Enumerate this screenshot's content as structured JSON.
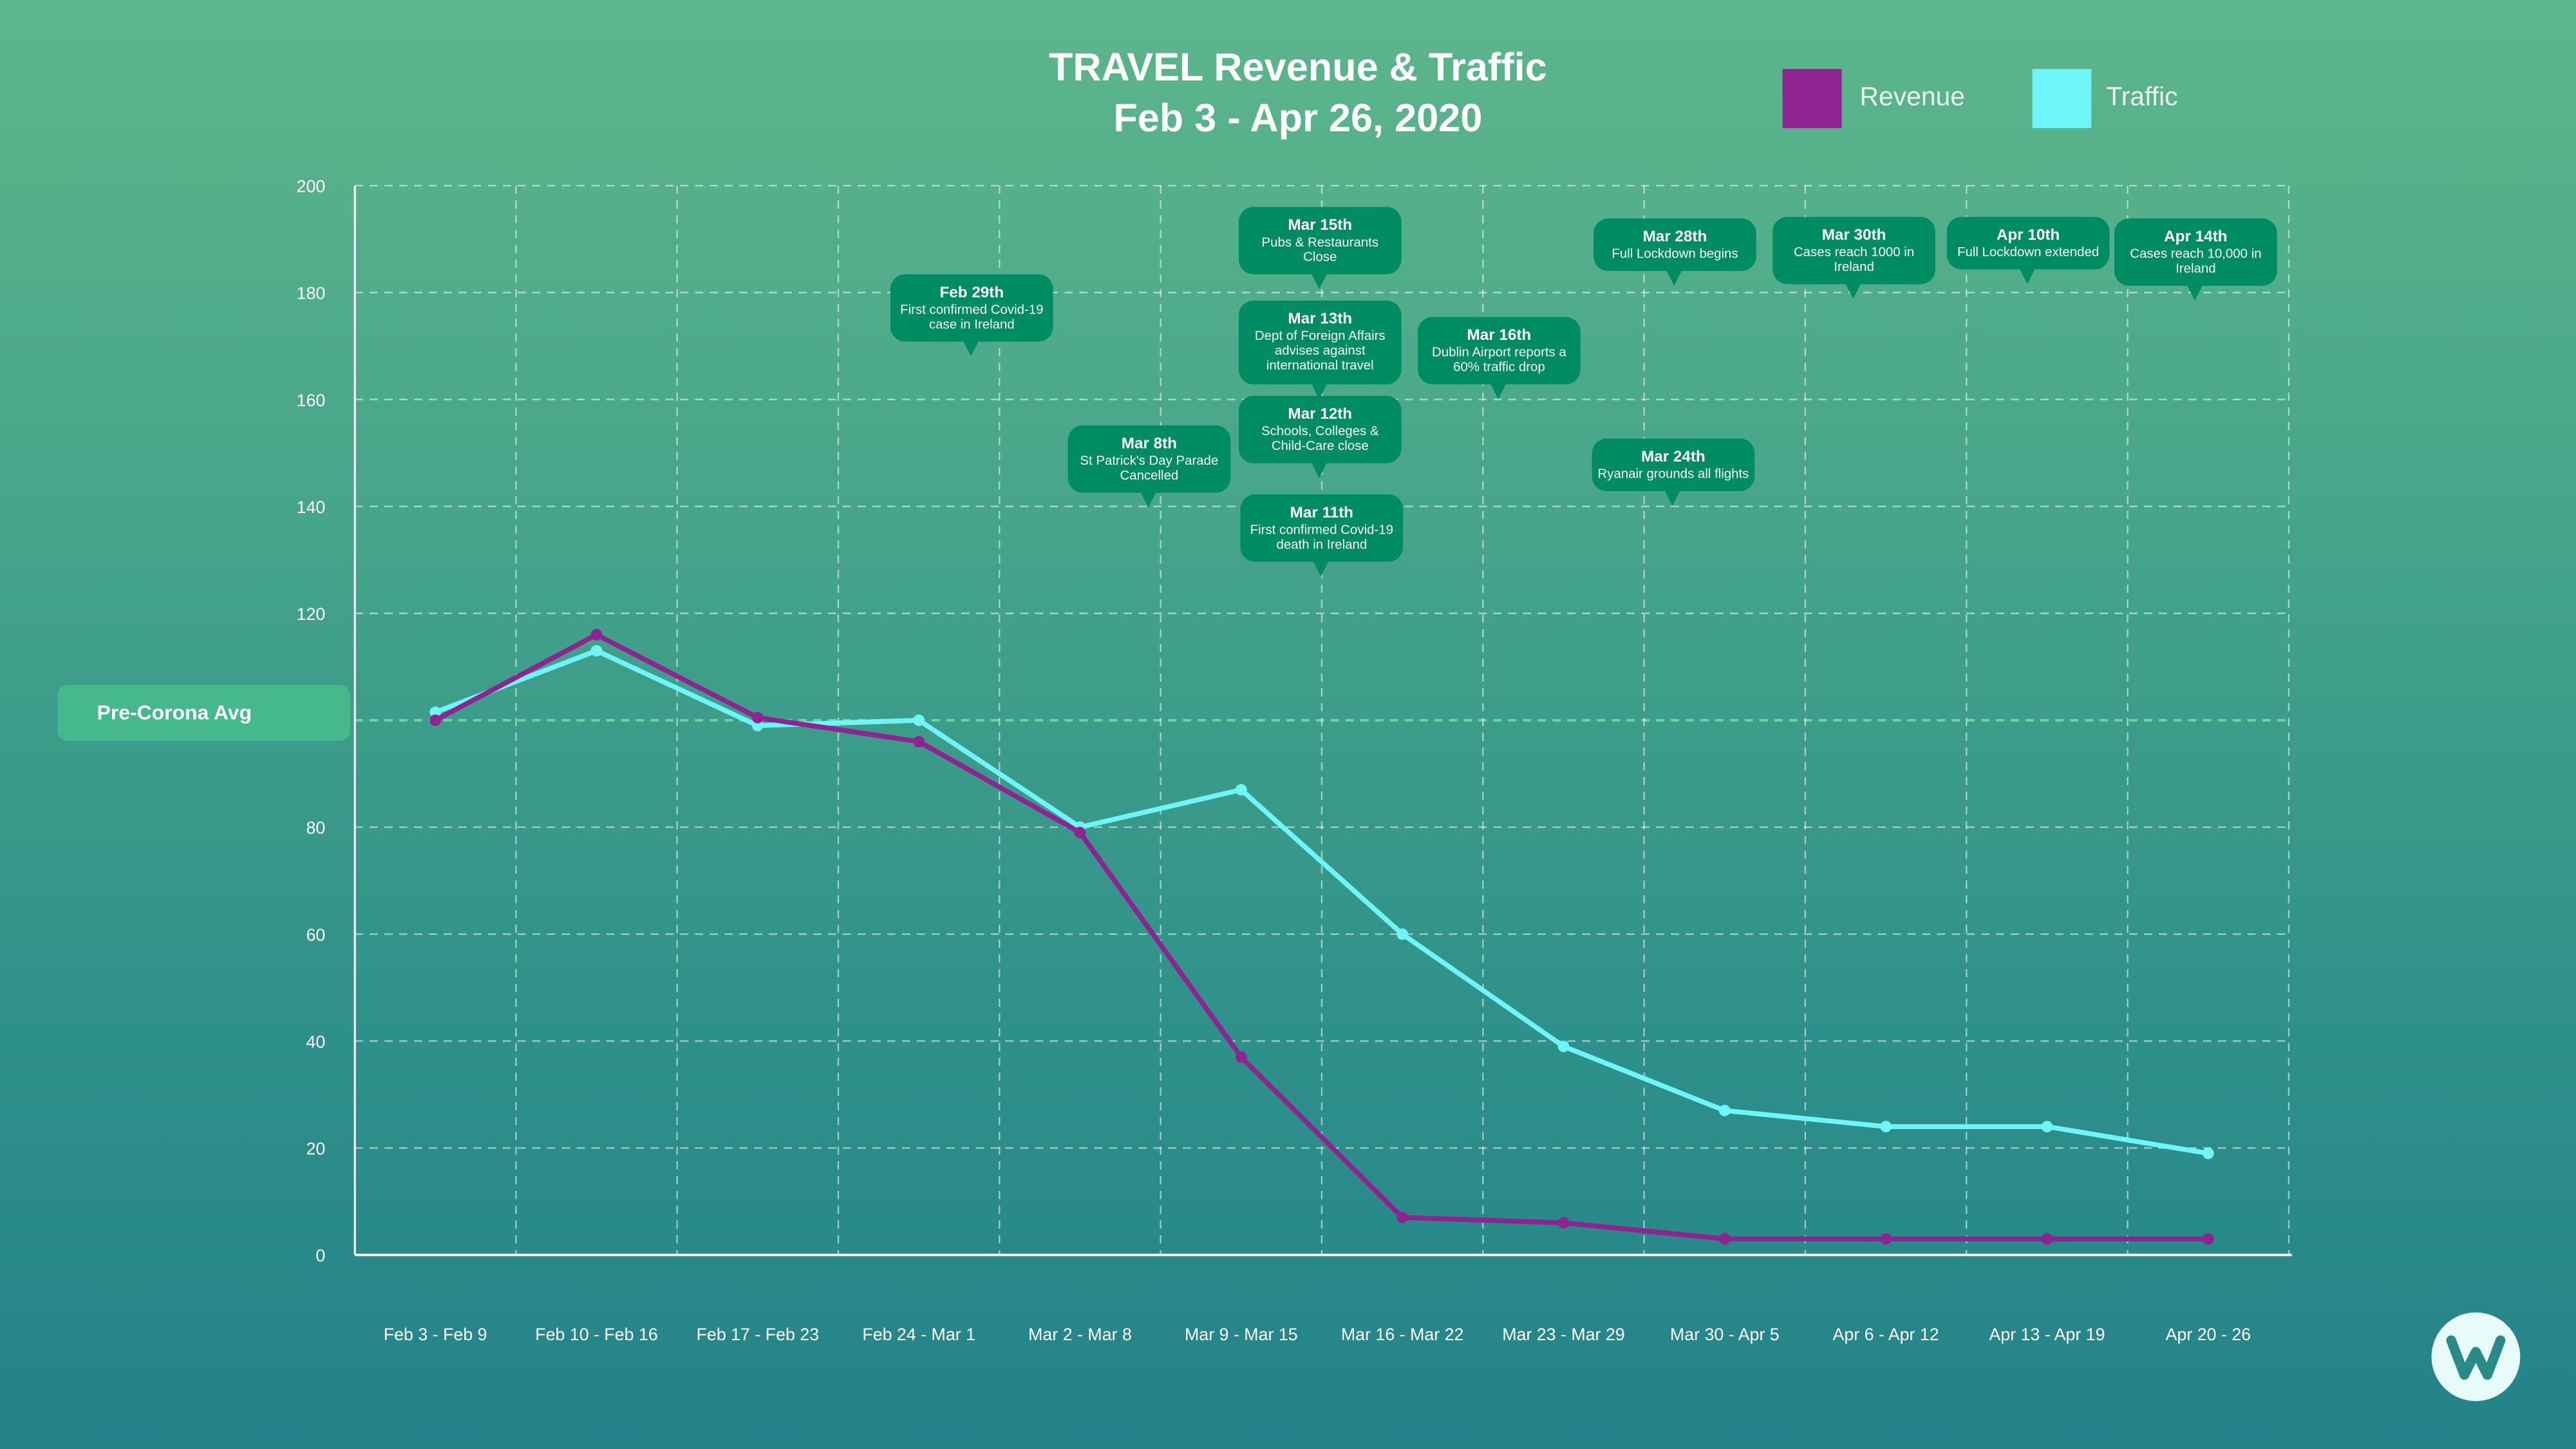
{
  "title_line1": "TRAVEL Revenue & Traffic",
  "title_line2": "Feb 3 - Apr 26, 2020",
  "legend": [
    {
      "label": "Revenue",
      "color": "#8e2391"
    },
    {
      "label": "Traffic",
      "color": "#6ff4f7"
    }
  ],
  "reference": {
    "label": "Pre-Corona Avg",
    "value": 100
  },
  "colors": {
    "callout": "#008c63",
    "background_top": "#5db68b",
    "background_bottom": "#238289"
  },
  "logo": "W",
  "annotations": [
    {
      "date": "Feb 29th",
      "text": "First confirmed Covid-19 case in Ireland"
    },
    {
      "date": "Mar 8th",
      "text": "St Patrick's Day Parade Cancelled"
    },
    {
      "date": "Mar 15th",
      "text": "Pubs & Restaurants Close"
    },
    {
      "date": "Mar 13th",
      "text": "Dept of Foreign Affairs advises against international travel"
    },
    {
      "date": "Mar 12th",
      "text": "Schools, Colleges & Child-Care  close"
    },
    {
      "date": "Mar 11th",
      "text": "First confirmed Covid-19 death in Ireland"
    },
    {
      "date": "Mar 16th",
      "text": "Dublin Airport reports a 60% traffic drop"
    },
    {
      "date": "Mar 28th",
      "text": "Full Lockdown begins"
    },
    {
      "date": "Mar 24th",
      "text": "Ryanair grounds all flights"
    },
    {
      "date": "Mar 30th",
      "text": "Cases reach 1000 in Ireland"
    },
    {
      "date": "Apr 10th",
      "text": "Full Lockdown extended"
    },
    {
      "date": "Apr 14th",
      "text": "Cases reach 10,000 in Ireland"
    }
  ],
  "chart_data": {
    "type": "line",
    "title": "TRAVEL Revenue & Traffic Feb 3 - Apr 26, 2020",
    "categories": [
      "Feb 3 - Feb 9",
      "Feb 10 - Feb 16",
      "Feb 17 - Feb 23",
      "Feb 24 - Mar 1",
      "Mar 2 - Mar 8",
      "Mar 9 - Mar 15",
      "Mar 16 - Mar 22",
      "Mar 23 - Mar 29",
      "Mar 30 - Apr 5",
      "Apr 6 - Apr 12",
      "Apr 13 - Apr 19",
      "Apr 20 - 26"
    ],
    "series": [
      {
        "name": "Revenue",
        "color": "#8e2391",
        "values": [
          100,
          116,
          100.5,
          96,
          79,
          37,
          7,
          6,
          3,
          3,
          3,
          3
        ]
      },
      {
        "name": "Traffic",
        "color": "#6ff4f7",
        "values": [
          101.5,
          113,
          99,
          100,
          80,
          87,
          60,
          39,
          27,
          24,
          24,
          19
        ]
      }
    ],
    "ylim": [
      0,
      200
    ],
    "yticks": [
      "0",
      "20",
      "40",
      "60",
      "80",
      "100",
      "120",
      "140",
      "160",
      "180",
      "200"
    ],
    "grid": true,
    "legend": "top-right"
  }
}
